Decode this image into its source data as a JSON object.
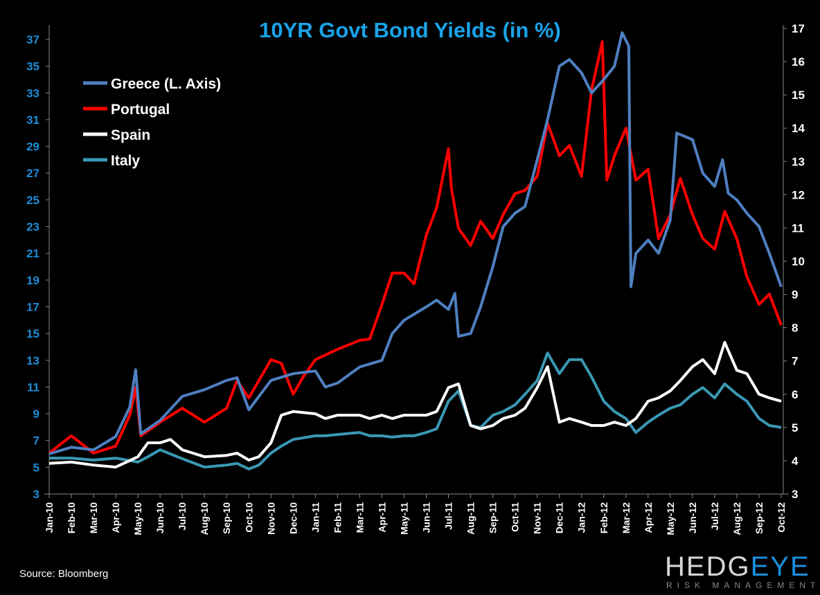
{
  "chart_data": {
    "type": "line",
    "title": "10YR Govt Bond Yields (in %)",
    "source": "Source: Bloomberg",
    "logo": "HEDGEYE RISK MANAGEMENT",
    "y_left": {
      "range": [
        3,
        37
      ],
      "ticks": [
        "3",
        "5",
        "7",
        "9",
        "11",
        "13",
        "15",
        "17",
        "19",
        "21",
        "23",
        "25",
        "27",
        "29",
        "31",
        "33",
        "35",
        "37"
      ]
    },
    "y_right": {
      "range": [
        3,
        17
      ],
      "ticks": [
        "3",
        "4",
        "5",
        "6",
        "7",
        "8",
        "9",
        "10",
        "11",
        "12",
        "13",
        "14",
        "15",
        "16",
        "17"
      ]
    },
    "x_ticks": [
      "Jan-10",
      "Feb-10",
      "Mar-10",
      "Apr-10",
      "May-10",
      "Jun-10",
      "Jul-10",
      "Aug-10",
      "Sep-10",
      "Oct-10",
      "Nov-10",
      "Dec-10",
      "Jan-11",
      "Feb-11",
      "Mar-11",
      "Apr-11",
      "May-11",
      "Jun-11",
      "Jul-11",
      "Aug-11",
      "Sep-11",
      "Oct-11",
      "Nov-11",
      "Dec-11",
      "Jan-12",
      "Feb-12",
      "Mar-12",
      "Apr-12",
      "May-12",
      "Jun-12",
      "Jul-12",
      "Aug-12",
      "Sep-12",
      "Oct-12"
    ],
    "grid": false,
    "legend_placement": "top-left",
    "series": [
      {
        "name": "Greece (L. Axis)",
        "axis": "left",
        "color": "#4f7fc0",
        "points": [
          [
            "2010-01-01",
            6
          ],
          [
            "2010-02-01",
            6.5
          ],
          [
            "2010-03-01",
            6.3
          ],
          [
            "2010-04-01",
            7.3
          ],
          [
            "2010-04-20",
            9.5
          ],
          [
            "2010-04-28",
            12.3
          ],
          [
            "2010-05-05",
            7.5
          ],
          [
            "2010-06-01",
            8.5
          ],
          [
            "2010-07-01",
            10.3
          ],
          [
            "2010-08-01",
            10.8
          ],
          [
            "2010-09-01",
            11.5
          ],
          [
            "2010-09-15",
            11.7
          ],
          [
            "2010-10-01",
            9.3
          ],
          [
            "2010-11-01",
            11.5
          ],
          [
            "2010-12-01",
            12
          ],
          [
            "2011-01-01",
            12.2
          ],
          [
            "2011-01-15",
            11
          ],
          [
            "2011-02-01",
            11.3
          ],
          [
            "2011-03-01",
            12.5
          ],
          [
            "2011-04-01",
            13
          ],
          [
            "2011-04-15",
            15
          ],
          [
            "2011-05-01",
            16
          ],
          [
            "2011-06-01",
            17
          ],
          [
            "2011-06-15",
            17.5
          ],
          [
            "2011-07-01",
            16.8
          ],
          [
            "2011-07-10",
            18
          ],
          [
            "2011-07-15",
            14.8
          ],
          [
            "2011-08-01",
            15
          ],
          [
            "2011-08-15",
            17
          ],
          [
            "2011-09-01",
            20
          ],
          [
            "2011-09-15",
            23
          ],
          [
            "2011-10-01",
            24
          ],
          [
            "2011-10-15",
            24.5
          ],
          [
            "2011-11-01",
            28
          ],
          [
            "2011-11-15",
            31
          ],
          [
            "2011-12-01",
            35
          ],
          [
            "2011-12-15",
            35.5
          ],
          [
            "2012-01-01",
            34.5
          ],
          [
            "2012-01-15",
            33
          ],
          [
            "2012-02-01",
            34
          ],
          [
            "2012-02-15",
            35
          ],
          [
            "2012-02-25",
            37.5
          ],
          [
            "2012-03-05",
            36.5
          ],
          [
            "2012-03-08",
            18.5
          ],
          [
            "2012-03-15",
            21
          ],
          [
            "2012-04-01",
            22
          ],
          [
            "2012-04-15",
            21
          ],
          [
            "2012-05-01",
            23.5
          ],
          [
            "2012-05-10",
            30
          ],
          [
            "2012-06-01",
            29.5
          ],
          [
            "2012-06-15",
            27
          ],
          [
            "2012-07-01",
            26
          ],
          [
            "2012-07-12",
            28
          ],
          [
            "2012-07-20",
            25.5
          ],
          [
            "2012-08-01",
            25
          ],
          [
            "2012-08-15",
            24
          ],
          [
            "2012-09-01",
            23
          ],
          [
            "2012-09-15",
            21
          ],
          [
            "2012-10-01",
            18.5
          ]
        ]
      },
      {
        "name": "Portugal",
        "axis": "right",
        "color": "#ff0000",
        "points": [
          [
            "2010-01-01",
            4.23
          ],
          [
            "2010-02-01",
            4.75
          ],
          [
            "2010-03-01",
            4.23
          ],
          [
            "2010-04-01",
            4.44
          ],
          [
            "2010-04-20",
            5.37
          ],
          [
            "2010-04-28",
            6.2
          ],
          [
            "2010-05-05",
            4.75
          ],
          [
            "2010-06-01",
            5.16
          ],
          [
            "2010-07-01",
            5.58
          ],
          [
            "2010-08-01",
            5.16
          ],
          [
            "2010-09-01",
            5.58
          ],
          [
            "2010-09-15",
            6.41
          ],
          [
            "2010-10-01",
            5.89
          ],
          [
            "2010-11-01",
            7.04
          ],
          [
            "2010-11-15",
            6.93
          ],
          [
            "2010-12-01",
            6.0
          ],
          [
            "2010-12-15",
            6.52
          ],
          [
            "2011-01-01",
            7.04
          ],
          [
            "2011-02-01",
            7.35
          ],
          [
            "2011-03-01",
            7.62
          ],
          [
            "2011-03-15",
            7.66
          ],
          [
            "2011-04-01",
            8.7
          ],
          [
            "2011-04-15",
            9.64
          ],
          [
            "2011-05-01",
            9.64
          ],
          [
            "2011-05-15",
            9.32
          ],
          [
            "2011-06-01",
            10.78
          ],
          [
            "2011-06-15",
            11.61
          ],
          [
            "2011-07-01",
            13.38
          ],
          [
            "2011-07-05",
            12.2
          ],
          [
            "2011-07-15",
            10.99
          ],
          [
            "2011-08-01",
            10.47
          ],
          [
            "2011-08-15",
            11.2
          ],
          [
            "2011-09-01",
            10.68
          ],
          [
            "2011-09-15",
            11.4
          ],
          [
            "2011-10-01",
            12.03
          ],
          [
            "2011-10-15",
            12.13
          ],
          [
            "2011-11-01",
            12.55
          ],
          [
            "2011-11-15",
            14.15
          ],
          [
            "2011-12-01",
            13.17
          ],
          [
            "2011-12-15",
            13.48
          ],
          [
            "2012-01-01",
            12.55
          ],
          [
            "2012-01-15",
            15.15
          ],
          [
            "2012-01-30",
            16.6
          ],
          [
            "2012-02-05",
            12.44
          ],
          [
            "2012-02-15",
            13.17
          ],
          [
            "2012-03-01",
            14.0
          ],
          [
            "2012-03-15",
            12.44
          ],
          [
            "2012-04-01",
            12.76
          ],
          [
            "2012-04-15",
            10.68
          ],
          [
            "2012-05-01",
            11.4
          ],
          [
            "2012-05-15",
            12.49
          ],
          [
            "2012-06-01",
            11.4
          ],
          [
            "2012-06-15",
            10.68
          ],
          [
            "2012-07-01",
            10.36
          ],
          [
            "2012-07-15",
            11.5
          ],
          [
            "2012-08-01",
            10.68
          ],
          [
            "2012-08-15",
            9.53
          ],
          [
            "2012-09-01",
            8.7
          ],
          [
            "2012-09-15",
            9.01
          ],
          [
            "2012-10-01",
            8.08
          ]
        ]
      },
      {
        "name": "Spain",
        "axis": "right",
        "color": "#ffffff",
        "points": [
          [
            "2010-01-01",
            3.92
          ],
          [
            "2010-02-01",
            3.96
          ],
          [
            "2010-03-01",
            3.87
          ],
          [
            "2010-04-01",
            3.81
          ],
          [
            "2010-05-01",
            4.12
          ],
          [
            "2010-05-15",
            4.54
          ],
          [
            "2010-06-01",
            4.54
          ],
          [
            "2010-06-15",
            4.64
          ],
          [
            "2010-07-01",
            4.33
          ],
          [
            "2010-08-01",
            4.12
          ],
          [
            "2010-09-01",
            4.16
          ],
          [
            "2010-09-15",
            4.23
          ],
          [
            "2010-10-01",
            4.02
          ],
          [
            "2010-10-15",
            4.12
          ],
          [
            "2010-11-01",
            4.54
          ],
          [
            "2010-11-15",
            5.37
          ],
          [
            "2010-12-01",
            5.48
          ],
          [
            "2011-01-01",
            5.41
          ],
          [
            "2011-01-15",
            5.27
          ],
          [
            "2011-02-01",
            5.37
          ],
          [
            "2011-03-01",
            5.37
          ],
          [
            "2011-03-15",
            5.27
          ],
          [
            "2011-04-01",
            5.37
          ],
          [
            "2011-04-15",
            5.27
          ],
          [
            "2011-05-01",
            5.37
          ],
          [
            "2011-05-15",
            5.37
          ],
          [
            "2011-06-01",
            5.37
          ],
          [
            "2011-06-15",
            5.48
          ],
          [
            "2011-07-01",
            6.2
          ],
          [
            "2011-07-15",
            6.31
          ],
          [
            "2011-08-01",
            5.06
          ],
          [
            "2011-08-15",
            4.96
          ],
          [
            "2011-09-01",
            5.06
          ],
          [
            "2011-09-15",
            5.27
          ],
          [
            "2011-10-01",
            5.37
          ],
          [
            "2011-10-15",
            5.58
          ],
          [
            "2011-11-01",
            6.2
          ],
          [
            "2011-11-15",
            6.83
          ],
          [
            "2011-12-01",
            5.16
          ],
          [
            "2011-12-15",
            5.27
          ],
          [
            "2012-01-01",
            5.16
          ],
          [
            "2012-01-15",
            5.06
          ],
          [
            "2012-02-01",
            5.06
          ],
          [
            "2012-02-15",
            5.16
          ],
          [
            "2012-03-01",
            5.06
          ],
          [
            "2012-03-15",
            5.27
          ],
          [
            "2012-04-01",
            5.79
          ],
          [
            "2012-04-15",
            5.89
          ],
          [
            "2012-05-01",
            6.1
          ],
          [
            "2012-05-15",
            6.41
          ],
          [
            "2012-06-01",
            6.83
          ],
          [
            "2012-06-15",
            7.04
          ],
          [
            "2012-07-01",
            6.62
          ],
          [
            "2012-07-15",
            7.56
          ],
          [
            "2012-08-01",
            6.72
          ],
          [
            "2012-08-15",
            6.62
          ],
          [
            "2012-09-01",
            6.0
          ],
          [
            "2012-09-15",
            5.89
          ],
          [
            "2012-10-01",
            5.79
          ]
        ]
      },
      {
        "name": "Italy",
        "axis": "right",
        "color": "#3a98b3",
        "points": [
          [
            "2010-01-01",
            4.08
          ],
          [
            "2010-02-01",
            4.08
          ],
          [
            "2010-03-01",
            4.02
          ],
          [
            "2010-04-01",
            4.08
          ],
          [
            "2010-05-01",
            3.96
          ],
          [
            "2010-05-15",
            4.12
          ],
          [
            "2010-06-01",
            4.33
          ],
          [
            "2010-07-01",
            4.06
          ],
          [
            "2010-08-01",
            3.81
          ],
          [
            "2010-09-01",
            3.87
          ],
          [
            "2010-09-15",
            3.92
          ],
          [
            "2010-10-01",
            3.75
          ],
          [
            "2010-10-15",
            3.87
          ],
          [
            "2010-11-01",
            4.23
          ],
          [
            "2010-11-15",
            4.44
          ],
          [
            "2010-12-01",
            4.64
          ],
          [
            "2011-01-01",
            4.75
          ],
          [
            "2011-01-15",
            4.75
          ],
          [
            "2011-02-01",
            4.79
          ],
          [
            "2011-03-01",
            4.85
          ],
          [
            "2011-03-15",
            4.75
          ],
          [
            "2011-04-01",
            4.75
          ],
          [
            "2011-04-15",
            4.71
          ],
          [
            "2011-05-01",
            4.75
          ],
          [
            "2011-05-15",
            4.75
          ],
          [
            "2011-06-01",
            4.85
          ],
          [
            "2011-06-15",
            4.96
          ],
          [
            "2011-07-01",
            5.79
          ],
          [
            "2011-07-15",
            6.1
          ],
          [
            "2011-08-01",
            5.06
          ],
          [
            "2011-08-15",
            5.0
          ],
          [
            "2011-09-01",
            5.37
          ],
          [
            "2011-09-15",
            5.48
          ],
          [
            "2011-10-01",
            5.68
          ],
          [
            "2011-10-15",
            6.0
          ],
          [
            "2011-11-01",
            6.41
          ],
          [
            "2011-11-15",
            7.24
          ],
          [
            "2011-12-01",
            6.62
          ],
          [
            "2011-12-15",
            7.04
          ],
          [
            "2012-01-01",
            7.04
          ],
          [
            "2012-01-15",
            6.52
          ],
          [
            "2012-02-01",
            5.79
          ],
          [
            "2012-02-15",
            5.48
          ],
          [
            "2012-03-01",
            5.27
          ],
          [
            "2012-03-15",
            4.85
          ],
          [
            "2012-04-01",
            5.16
          ],
          [
            "2012-04-15",
            5.37
          ],
          [
            "2012-05-01",
            5.58
          ],
          [
            "2012-05-15",
            5.68
          ],
          [
            "2012-06-01",
            6.0
          ],
          [
            "2012-06-15",
            6.2
          ],
          [
            "2012-07-01",
            5.89
          ],
          [
            "2012-07-15",
            6.31
          ],
          [
            "2012-08-01",
            6.0
          ],
          [
            "2012-08-15",
            5.79
          ],
          [
            "2012-09-01",
            5.27
          ],
          [
            "2012-09-15",
            5.06
          ],
          [
            "2012-10-01",
            5.0
          ]
        ]
      }
    ]
  }
}
